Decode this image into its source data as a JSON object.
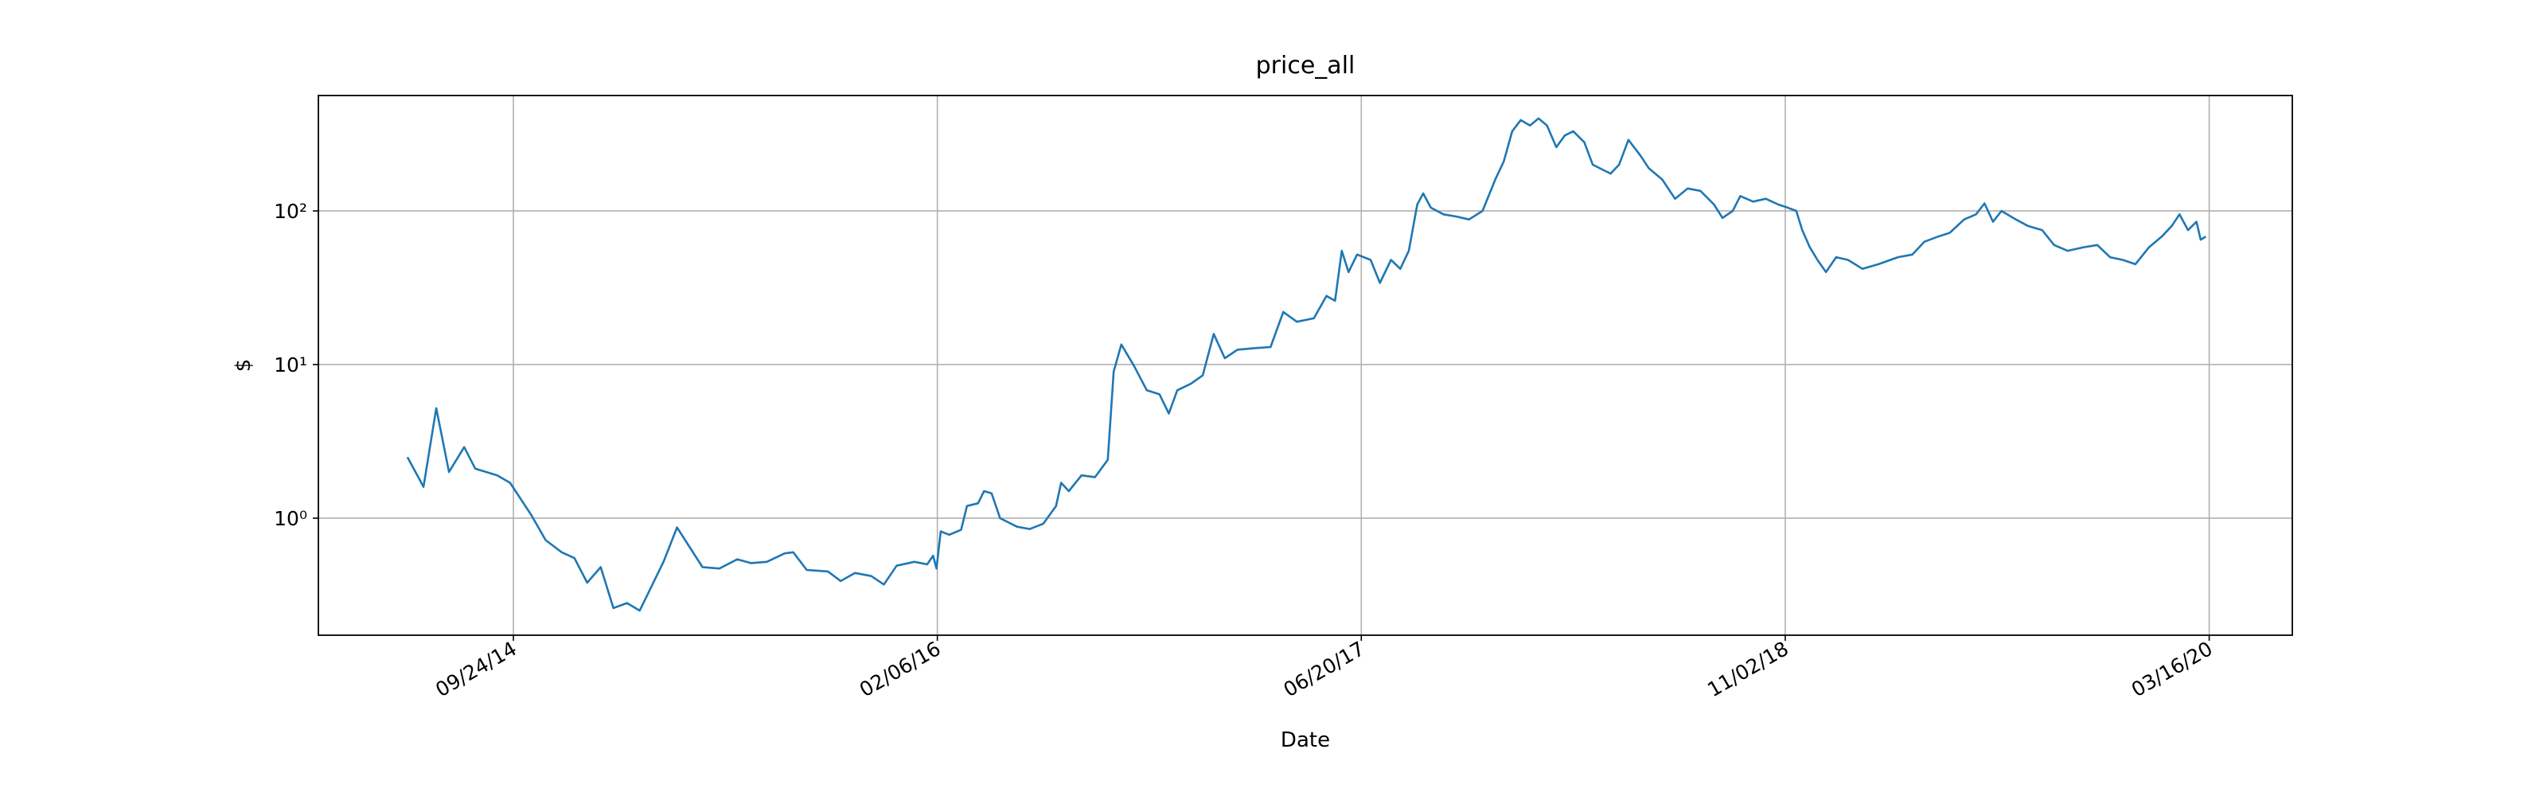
{
  "chart_data": {
    "type": "line",
    "title": "price_all",
    "xlabel": "Date",
    "ylabel": "$",
    "color": "#1f77b4",
    "log_y": true,
    "grid": true,
    "xlim": [
      "2014-02-06",
      "2020-06-22"
    ],
    "xticks": [
      {
        "value": "2014-09-24",
        "label": "09/24/14"
      },
      {
        "value": "2016-02-06",
        "label": "02/06/16"
      },
      {
        "value": "2017-06-20",
        "label": "06/20/17"
      },
      {
        "value": "2018-11-02",
        "label": "11/02/18"
      },
      {
        "value": "2020-03-16",
        "label": "03/16/20"
      }
    ],
    "ylim": [
      0.173,
      564
    ],
    "yticks": [
      {
        "value": 1,
        "label": "10⁰"
      },
      {
        "value": 10,
        "label": "10¹"
      },
      {
        "value": 100,
        "label": "10²"
      }
    ],
    "x": [
      "2014-05-22",
      "2014-06-10",
      "2014-06-25",
      "2014-07-10",
      "2014-07-28",
      "2014-08-10",
      "2014-09-05",
      "2014-09-20",
      "2014-10-15",
      "2014-11-01",
      "2014-11-20",
      "2014-12-05",
      "2014-12-20",
      "2015-01-05",
      "2015-01-20",
      "2015-02-05",
      "2015-02-20",
      "2015-03-20",
      "2015-04-05",
      "2015-05-05",
      "2015-05-25",
      "2015-06-15",
      "2015-07-01",
      "2015-07-20",
      "2015-08-10",
      "2015-08-20",
      "2015-09-05",
      "2015-09-30",
      "2015-10-15",
      "2015-11-01",
      "2015-11-20",
      "2015-12-05",
      "2015-12-20",
      "2016-01-10",
      "2016-01-25",
      "2016-02-01",
      "2016-02-05",
      "2016-02-10",
      "2016-02-20",
      "2016-03-05",
      "2016-03-12",
      "2016-03-25",
      "2016-04-01",
      "2016-04-10",
      "2016-04-20",
      "2016-05-10",
      "2016-05-25",
      "2016-06-10",
      "2016-06-25",
      "2016-07-01",
      "2016-07-10",
      "2016-07-25",
      "2016-08-10",
      "2016-08-25",
      "2016-09-01",
      "2016-09-10",
      "2016-09-25",
      "2016-10-10",
      "2016-10-25",
      "2016-11-05",
      "2016-11-15",
      "2016-12-01",
      "2016-12-15",
      "2016-12-28",
      "2017-01-10",
      "2017-01-25",
      "2017-02-15",
      "2017-03-05",
      "2017-03-20",
      "2017-04-05",
      "2017-04-25",
      "2017-05-10",
      "2017-05-20",
      "2017-05-28",
      "2017-06-05",
      "2017-06-15",
      "2017-07-01",
      "2017-07-12",
      "2017-07-25",
      "2017-08-05",
      "2017-08-15",
      "2017-08-25",
      "2017-09-01",
      "2017-09-10",
      "2017-09-25",
      "2017-10-10",
      "2017-10-25",
      "2017-11-10",
      "2017-11-25",
      "2017-12-05",
      "2017-12-15",
      "2017-12-25",
      "2018-01-05",
      "2018-01-15",
      "2018-01-25",
      "2018-02-05",
      "2018-02-15",
      "2018-02-25",
      "2018-03-10",
      "2018-03-20",
      "2018-04-01",
      "2018-04-10",
      "2018-04-20",
      "2018-05-01",
      "2018-05-15",
      "2018-05-25",
      "2018-06-10",
      "2018-06-25",
      "2018-07-10",
      "2018-07-25",
      "2018-08-10",
      "2018-08-20",
      "2018-09-01",
      "2018-09-10",
      "2018-09-25",
      "2018-10-10",
      "2018-10-25",
      "2018-11-05",
      "2018-11-15",
      "2018-11-22",
      "2018-12-01",
      "2018-12-10",
      "2018-12-20",
      "2019-01-01",
      "2019-01-15",
      "2019-02-01",
      "2019-02-20",
      "2019-03-15",
      "2019-04-01",
      "2019-04-15",
      "2019-05-01",
      "2019-05-15",
      "2019-06-01",
      "2019-06-15",
      "2019-06-25",
      "2019-07-05",
      "2019-07-15",
      "2019-08-01",
      "2019-08-15",
      "2019-09-01",
      "2019-09-15",
      "2019-10-01",
      "2019-10-20",
      "2019-11-05",
      "2019-11-20",
      "2019-12-05",
      "2019-12-20",
      "2020-01-05",
      "2020-01-20",
      "2020-02-01",
      "2020-02-10",
      "2020-02-20",
      "2020-03-01",
      "2020-03-06",
      "2020-03-12"
    ],
    "values": [
      2.5,
      1.6,
      5.2,
      2.0,
      2.9,
      2.1,
      1.9,
      1.7,
      1.05,
      0.72,
      0.6,
      0.55,
      0.38,
      0.48,
      0.26,
      0.28,
      0.25,
      0.52,
      0.87,
      0.48,
      0.47,
      0.54,
      0.51,
      0.52,
      0.59,
      0.6,
      0.46,
      0.45,
      0.39,
      0.44,
      0.42,
      0.37,
      0.49,
      0.52,
      0.5,
      0.57,
      0.47,
      0.82,
      0.78,
      0.84,
      1.2,
      1.25,
      1.5,
      1.45,
      1.0,
      0.88,
      0.85,
      0.92,
      1.2,
      1.7,
      1.5,
      1.9,
      1.85,
      2.4,
      9.0,
      13.5,
      9.8,
      6.8,
      6.4,
      4.8,
      6.8,
      7.5,
      8.5,
      15.8,
      11,
      12.5,
      12.8,
      13,
      22,
      19,
      20,
      28,
      26,
      55,
      40,
      52,
      48,
      34,
      48,
      42,
      55,
      110,
      130,
      105,
      95,
      92,
      88,
      100,
      160,
      210,
      330,
      390,
      360,
      400,
      360,
      260,
      310,
      330,
      280,
      200,
      185,
      175,
      200,
      290,
      230,
      190,
      160,
      120,
      140,
      135,
      110,
      90,
      100,
      125,
      115,
      120,
      110,
      105,
      100,
      75,
      58,
      48,
      40,
      50,
      48,
      42,
      45,
      50,
      52,
      63,
      68,
      72,
      88,
      95,
      112,
      85,
      100,
      88,
      80,
      75,
      60,
      55,
      58,
      60,
      50,
      48,
      45,
      58,
      68,
      80,
      95,
      75,
      85,
      65,
      68
    ]
  }
}
